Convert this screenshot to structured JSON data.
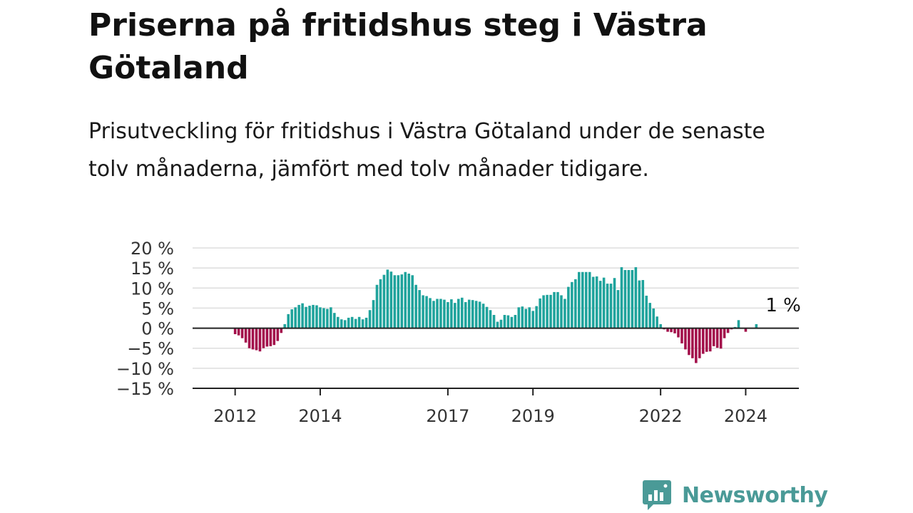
{
  "header": {
    "title": "Priserna på fritidshus steg i Västra Götaland",
    "subtitle": "Prisutveckling för fritidshus i Västra Götaland under de senaste tolv månaderna, jämfört med tolv månader tidigare."
  },
  "branding": {
    "logo_text": "Newsworthy",
    "logo_color": "#4a9a97"
  },
  "chart_data": {
    "type": "bar",
    "x_start": "2011-06",
    "x_end": "2025-09",
    "x_unit": "month",
    "ylim": [
      -15,
      20
    ],
    "yticks": [
      20,
      15,
      10,
      5,
      0,
      -5,
      -10,
      -15
    ],
    "ytick_labels": [
      "20 %",
      "15 %",
      "10 %",
      "5 %",
      "0 %",
      "−5 %",
      "−10 %",
      "−15 %"
    ],
    "xticks": [
      {
        "label": "2012",
        "date": "2012-06"
      },
      {
        "label": "2014",
        "date": "2014-06"
      },
      {
        "label": "2017",
        "date": "2017-06"
      },
      {
        "label": "2019",
        "date": "2019-06"
      },
      {
        "label": "2022",
        "date": "2022-06"
      },
      {
        "label": "2024",
        "date": "2024-06"
      }
    ],
    "grid": true,
    "colors": {
      "positive": "#1fa39c",
      "negative": "#a3104b",
      "grid": "#dddddd",
      "axis": "#222222"
    },
    "annotation": {
      "text": "1 %",
      "date": "2025-05",
      "value": 1
    },
    "series": [
      {
        "start": "2012-06",
        "values": [
          -1.5,
          -1.8,
          -2.5,
          -3.6,
          -5,
          -5.3,
          -5.5,
          -5.8,
          -5,
          -4.6,
          -4.5,
          -4.2,
          -3.2,
          -1.2,
          1,
          3.5,
          4.7,
          5.2,
          5.8,
          6.2,
          5.3,
          5.6,
          5.8,
          5.7,
          5.2,
          5,
          4.8,
          5.2,
          3.8,
          2.8,
          2.2,
          2,
          2.6,
          2.8,
          2.3,
          2.8,
          2.2,
          2.6,
          4.5,
          7,
          10.8,
          12.2,
          13.3,
          14.6,
          14.1,
          13.2,
          13.2,
          13.4,
          14,
          13.6,
          13.2,
          10.8,
          9.5,
          8.2,
          8,
          7.5,
          6.8,
          7.3,
          7.3,
          7.1,
          6.5,
          7.2,
          6.3,
          7.3,
          7.6,
          6.5,
          7.1,
          7,
          6.8,
          6.6,
          6.1,
          5.3,
          4.5,
          3.3,
          1.6,
          2.1,
          3.3,
          3.2,
          2.8,
          3.3,
          5.2,
          5.4,
          4.8,
          5.2,
          4.3,
          5.5,
          7.4,
          8.2,
          8.3,
          8.3,
          9,
          9,
          8.2,
          7.3,
          10.3,
          11.5,
          12.2,
          14,
          14,
          14,
          14,
          12.8,
          12.9,
          11.8,
          12.6,
          11.1,
          11.1,
          12.5,
          9.5,
          15.2,
          14.5,
          14.5,
          14.5,
          15.2,
          11.9,
          12,
          8.1,
          6.3,
          4.9,
          2.9,
          1,
          -0.3,
          -0.9,
          -1,
          -1.3,
          -2.3,
          -3.8,
          -5.3,
          -6.7,
          -7.5,
          -8.7,
          -7.5,
          -6.4,
          -5.9,
          -5.8,
          -4.5,
          -4.9,
          -5.1,
          -2.5,
          -1.2,
          -0.3,
          0.3,
          2,
          0,
          -0.9,
          0,
          0,
          1
        ]
      }
    ]
  }
}
